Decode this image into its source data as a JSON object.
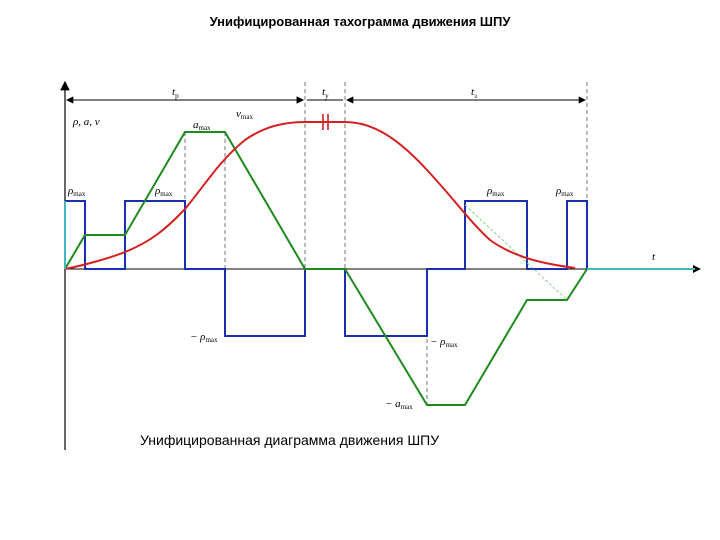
{
  "title": "Унифицированная тахограмма движения ШПУ",
  "caption": "Унифицированная диаграмма движения ШПУ",
  "labels": {
    "t_p": "t",
    "t_p_sub": "р",
    "t_y": "t",
    "t_y_sub": "у",
    "t_z": "t",
    "t_z_sub": "з",
    "axis_y": "ρ, a, v",
    "axis_x": "t",
    "a_max": "a",
    "a_max_sub": "max",
    "v_max": "v",
    "v_max_sub": "max",
    "rho_max": "ρ",
    "rho_max_sub": "max",
    "neg_rho_max": "− ρ",
    "neg_rho_max_sub": "max",
    "neg_a_max": "− a",
    "neg_a_max_sub": "max"
  },
  "colors": {
    "jerk": "#1a2fb0",
    "acceleration": "#1e8a1e",
    "velocity": "#d42020",
    "axis": "#000000",
    "tail": "#3fb8c0"
  }
}
